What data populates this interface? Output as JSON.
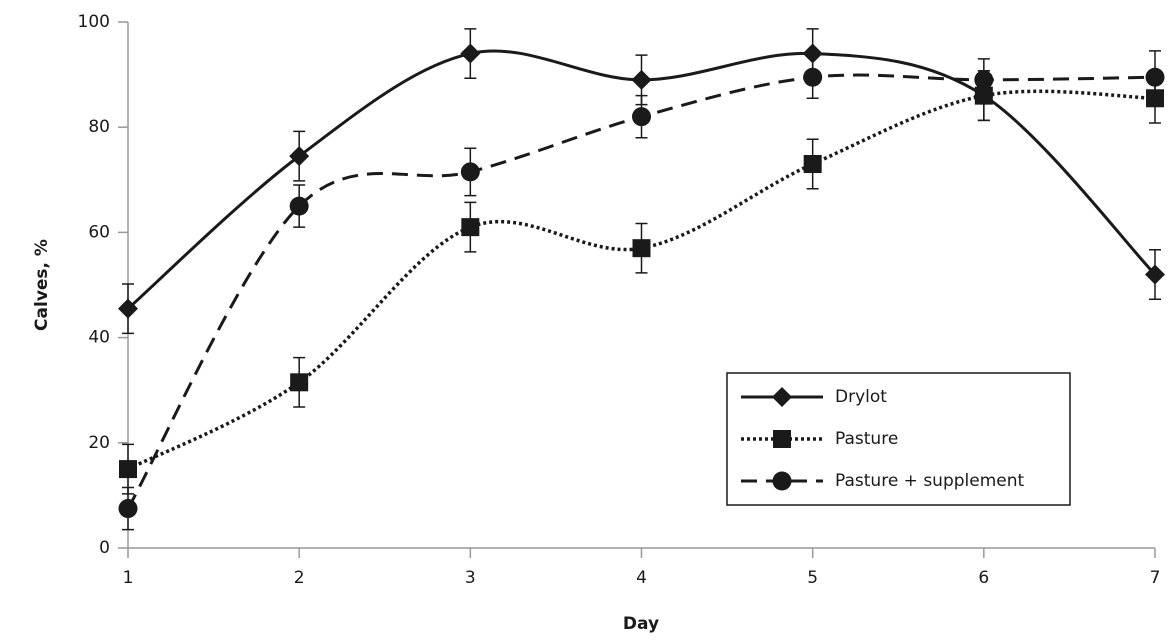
{
  "chart_data": {
    "type": "line",
    "x_label": "Day",
    "y_label": "Calves, %",
    "x": [
      1,
      2,
      3,
      4,
      5,
      6,
      7
    ],
    "xlim": [
      1,
      7
    ],
    "xticks": [
      1,
      2,
      3,
      4,
      5,
      6,
      7
    ],
    "ylim": [
      0,
      100
    ],
    "yticks": [
      0,
      20,
      40,
      60,
      80,
      100
    ],
    "grid": false,
    "legend": "lower right",
    "smooth": true,
    "series": [
      {
        "name": "Drylot",
        "color": "#1a1a1a",
        "marker": "diamond",
        "dash": "solid",
        "values": [
          45.5,
          74.5,
          94,
          89,
          94,
          86,
          52
        ],
        "errors": [
          4.7,
          4.7,
          4.7,
          4.7,
          4.7,
          4.7,
          4.7
        ]
      },
      {
        "name": "Pasture",
        "color": "#1a1a1a",
        "marker": "square",
        "dash": "dotted",
        "values": [
          15,
          31.5,
          61,
          57,
          73,
          86,
          85.5
        ],
        "errors": [
          4.7,
          4.7,
          4.7,
          4.7,
          4.7,
          4.7,
          4.7
        ]
      },
      {
        "name": "Pasture + supplement",
        "color": "#1a1a1a",
        "marker": "circle",
        "dash": "dashed",
        "values": [
          7.5,
          65,
          71.5,
          82,
          89.5,
          89,
          89.5
        ],
        "errors": [
          4,
          4,
          4.5,
          4,
          4,
          4,
          5
        ]
      }
    ]
  }
}
